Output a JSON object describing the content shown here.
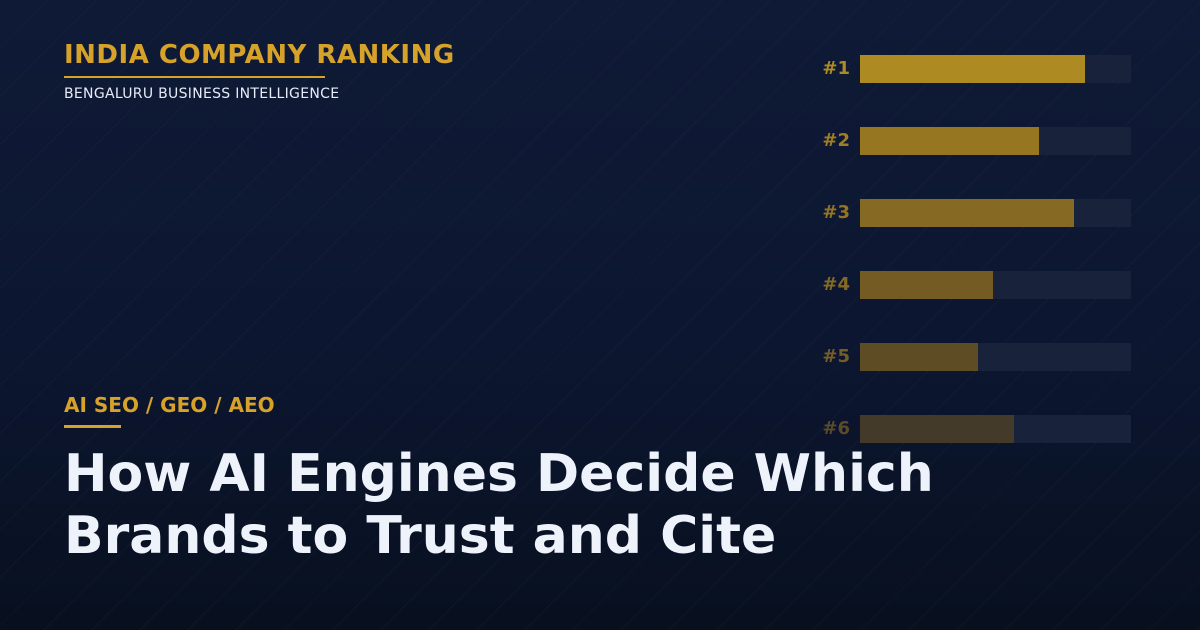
{
  "header": {
    "title": "INDIA COMPANY RANKING",
    "subtitle": "BENGALURU BUSINESS INTELLIGENCE"
  },
  "ranking": {
    "items": [
      {
        "label": "#1",
        "fill": 0.83,
        "color": "#ad8a22",
        "label_color": "#ad8a22"
      },
      {
        "label": "#2",
        "fill": 0.66,
        "color": "#977621",
        "label_color": "#a07e22"
      },
      {
        "label": "#3",
        "fill": 0.79,
        "color": "#866922",
        "label_color": "#937423"
      },
      {
        "label": "#4",
        "fill": 0.49,
        "color": "#745b24",
        "label_color": "#856a24"
      },
      {
        "label": "#5",
        "fill": 0.435,
        "color": "#5e4c25",
        "label_color": "#755d26"
      },
      {
        "label": "#6",
        "fill": 0.57,
        "color": "#443a2a",
        "label_color": "#5a4b2b"
      }
    ]
  },
  "category": {
    "label": "AI SEO / GEO / AEO"
  },
  "headline": {
    "line1": "How AI Engines Decide Which",
    "line2": "Brands to Trust and Cite"
  },
  "colors": {
    "accent": "#d6a22a",
    "background": "#0c1630",
    "text": "#eef2fb"
  }
}
